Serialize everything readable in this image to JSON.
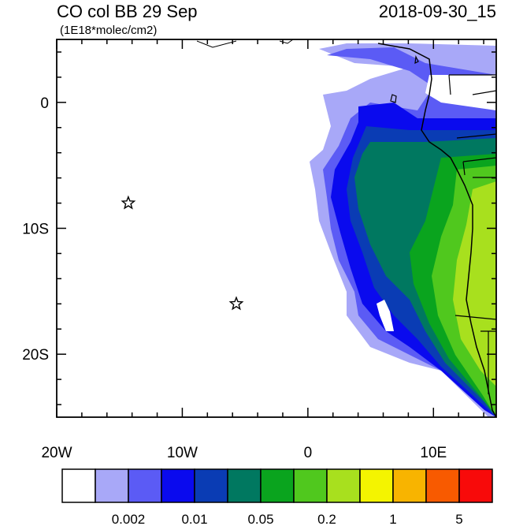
{
  "header": {
    "title_left": "CO col BB 29 Sep",
    "title_right": "2018-09-30_15",
    "units": "(1E18*molec/cm2)"
  },
  "map": {
    "lon_range": [
      -20,
      15
    ],
    "lat_range": [
      -25,
      5
    ],
    "x_tick_labels": [
      {
        "lon": -20,
        "label": "20W"
      },
      {
        "lon": -10,
        "label": "10W"
      },
      {
        "lon": 0,
        "label": "0"
      },
      {
        "lon": 10,
        "label": "10E"
      }
    ],
    "y_tick_labels": [
      {
        "lat": 0,
        "label": "0"
      },
      {
        "lat": -10,
        "label": "10S"
      },
      {
        "lat": -20,
        "label": "20S"
      }
    ],
    "markers": [
      {
        "name": "star-1",
        "lon": -14.3,
        "lat": -8.0
      },
      {
        "name": "star-2",
        "lon": -5.7,
        "lat": -16.0
      }
    ]
  },
  "colorbar": {
    "colors": [
      "#ffffff",
      "#a8a8f8",
      "#5b5bf5",
      "#0a0aee",
      "#0a3cb4",
      "#007860",
      "#0aa41e",
      "#50c81e",
      "#a8e01e",
      "#f4f400",
      "#f8b400",
      "#f85a00",
      "#f80a0a"
    ],
    "labels": [
      "0.002",
      "0.01",
      "0.05",
      "0.2",
      "1",
      "5"
    ]
  }
}
